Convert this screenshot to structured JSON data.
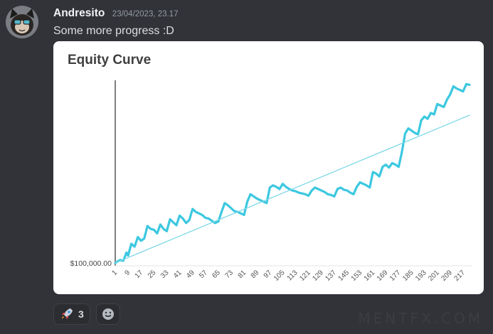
{
  "message": {
    "username": "Andresito",
    "timestamp": "23/04/2023, 23.17",
    "text": "Some more progress :D"
  },
  "avatar": {
    "icon": "cat-avatar-icon"
  },
  "reactions": [
    {
      "icon": "rocket-icon",
      "count": "3"
    },
    {
      "icon": "add-reaction-icon"
    }
  ],
  "watermark": "MENTFX.COM",
  "chart_data": {
    "type": "line",
    "title": "Equity Curve",
    "y_tick_label": "$100,000.00",
    "x_tick_labels": [
      "1",
      "9",
      "17",
      "25",
      "33",
      "41",
      "49",
      "57",
      "65",
      "73",
      "81",
      "89",
      "97",
      "105",
      "113",
      "121",
      "129",
      "137",
      "145",
      "153",
      "161",
      "169",
      "177",
      "185",
      "193",
      "201",
      "209",
      "217"
    ],
    "x_range": [
      1,
      221
    ],
    "series": [
      {
        "color": "#3cc8e0",
        "points": [
          [
            1,
            0
          ],
          [
            4,
            0.4
          ],
          [
            6,
            0.3
          ],
          [
            8,
            1.4
          ],
          [
            9,
            1.0
          ],
          [
            11,
            2.6
          ],
          [
            13,
            2.2
          ],
          [
            15,
            3.5
          ],
          [
            17,
            3.0
          ],
          [
            19,
            3.3
          ],
          [
            21,
            5.0
          ],
          [
            23,
            4.6
          ],
          [
            25,
            4.5
          ],
          [
            27,
            4.0
          ],
          [
            29,
            5.2
          ],
          [
            31,
            4.6
          ],
          [
            33,
            4.3
          ],
          [
            35,
            5.9
          ],
          [
            37,
            5.5
          ],
          [
            39,
            5.1
          ],
          [
            41,
            6.4
          ],
          [
            43,
            6.0
          ],
          [
            45,
            5.4
          ],
          [
            47,
            5.8
          ],
          [
            49,
            7.3
          ],
          [
            51,
            6.9
          ],
          [
            53,
            6.7
          ],
          [
            55,
            6.5
          ],
          [
            57,
            6.1
          ],
          [
            59,
            6.0
          ],
          [
            61,
            5.7
          ],
          [
            63,
            5.4
          ],
          [
            65,
            5.6
          ],
          [
            67,
            6.9
          ],
          [
            69,
            8.1
          ],
          [
            71,
            7.8
          ],
          [
            73,
            7.4
          ],
          [
            75,
            7.0
          ],
          [
            77,
            6.9
          ],
          [
            79,
            6.7
          ],
          [
            81,
            6.5
          ],
          [
            83,
            8.3
          ],
          [
            85,
            9.3
          ],
          [
            87,
            9.0
          ],
          [
            89,
            8.7
          ],
          [
            91,
            8.5
          ],
          [
            93,
            8.3
          ],
          [
            95,
            8.1
          ],
          [
            97,
            10.2
          ],
          [
            99,
            10.5
          ],
          [
            101,
            10.3
          ],
          [
            103,
            10.0
          ],
          [
            105,
            10.7
          ],
          [
            107,
            10.3
          ],
          [
            109,
            10.0
          ],
          [
            111,
            9.8
          ],
          [
            113,
            9.7
          ],
          [
            115,
            9.5
          ],
          [
            117,
            9.4
          ],
          [
            119,
            9.3
          ],
          [
            121,
            9.1
          ],
          [
            123,
            9.8
          ],
          [
            125,
            10.2
          ],
          [
            127,
            10.0
          ],
          [
            129,
            9.8
          ],
          [
            131,
            9.6
          ],
          [
            133,
            9.3
          ],
          [
            135,
            9.2
          ],
          [
            137,
            9.0
          ],
          [
            139,
            10.0
          ],
          [
            141,
            10.2
          ],
          [
            143,
            9.9
          ],
          [
            145,
            9.8
          ],
          [
            147,
            9.5
          ],
          [
            149,
            9.3
          ],
          [
            151,
            10.3
          ],
          [
            153,
            10.9
          ],
          [
            155,
            10.7
          ],
          [
            157,
            10.5
          ],
          [
            159,
            10.2
          ],
          [
            161,
            12.3
          ],
          [
            163,
            12.1
          ],
          [
            165,
            11.7
          ],
          [
            167,
            13.0
          ],
          [
            169,
            13.3
          ],
          [
            171,
            12.9
          ],
          [
            173,
            13.5
          ],
          [
            175,
            13.3
          ],
          [
            177,
            13.0
          ],
          [
            179,
            15.0
          ],
          [
            181,
            17.5
          ],
          [
            183,
            18.2
          ],
          [
            185,
            17.9
          ],
          [
            187,
            17.6
          ],
          [
            189,
            17.4
          ],
          [
            191,
            19.3
          ],
          [
            193,
            19.8
          ],
          [
            195,
            19.5
          ],
          [
            197,
            20.3
          ],
          [
            199,
            20.1
          ],
          [
            201,
            21.5
          ],
          [
            203,
            21.3
          ],
          [
            205,
            21.1
          ],
          [
            207,
            22.1
          ],
          [
            209,
            22.8
          ],
          [
            211,
            23.9
          ],
          [
            213,
            23.6
          ],
          [
            215,
            23.4
          ],
          [
            217,
            23.2
          ],
          [
            219,
            24.2
          ],
          [
            221,
            24.1
          ]
        ]
      },
      {
        "color": "#7fd8e8",
        "points": [
          [
            1,
            0
          ],
          [
            221,
            20.0
          ]
        ]
      }
    ]
  }
}
